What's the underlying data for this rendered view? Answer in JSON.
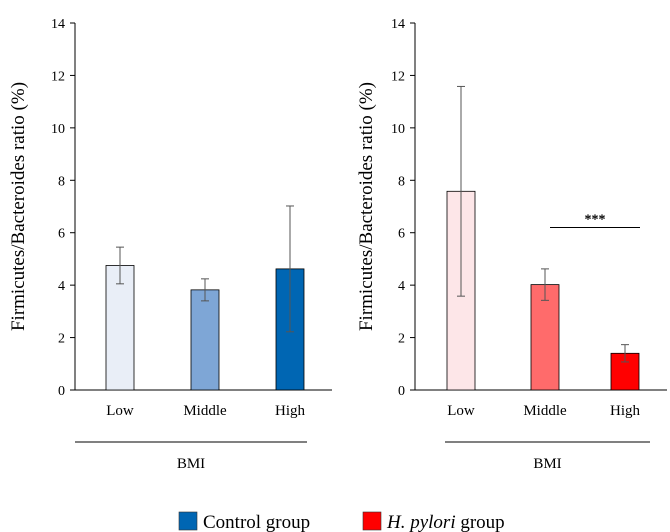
{
  "chart_data": [
    {
      "type": "bar",
      "ylabel": "Firmicutes/Bacteroides ratio (%)",
      "xlabel": "BMI",
      "categories": [
        "Low",
        "Middle",
        "High"
      ],
      "ylim": [
        0,
        14
      ],
      "yticks": [
        "0",
        "2",
        "4",
        "6",
        "8",
        "10",
        "12",
        "14"
      ],
      "series": [
        {
          "name": "Control group",
          "values": [
            4.75,
            3.82,
            4.62
          ],
          "errors": [
            0.7,
            0.42,
            2.4
          ],
          "colors": [
            "#e9eef7",
            "#7ea6d6",
            "#0066b3"
          ]
        }
      ],
      "significance": []
    },
    {
      "type": "bar",
      "ylabel": "Firmicutes/Bacteroides ratio (%)",
      "xlabel": "BMI",
      "categories": [
        "Low",
        "Middle",
        "High"
      ],
      "ylim": [
        0,
        14
      ],
      "yticks": [
        "0",
        "2",
        "4",
        "6",
        "8",
        "10",
        "12",
        "14"
      ],
      "series": [
        {
          "name": "H. pylori group",
          "values": [
            7.58,
            4.02,
            1.4
          ],
          "errors": [
            4.0,
            0.6,
            0.33
          ],
          "colors": [
            "#fde6e8",
            "#ff6b6b",
            "#ff0000"
          ]
        }
      ],
      "significance": [
        {
          "from": "Middle",
          "to": "High",
          "label": "***",
          "y": 6.2
        }
      ]
    }
  ],
  "legend": {
    "items": [
      {
        "label": "Control group",
        "italic": "",
        "color": "#0066b3"
      },
      {
        "label": "group",
        "italic": "H. pylori",
        "color": "#ff0000"
      }
    ]
  }
}
